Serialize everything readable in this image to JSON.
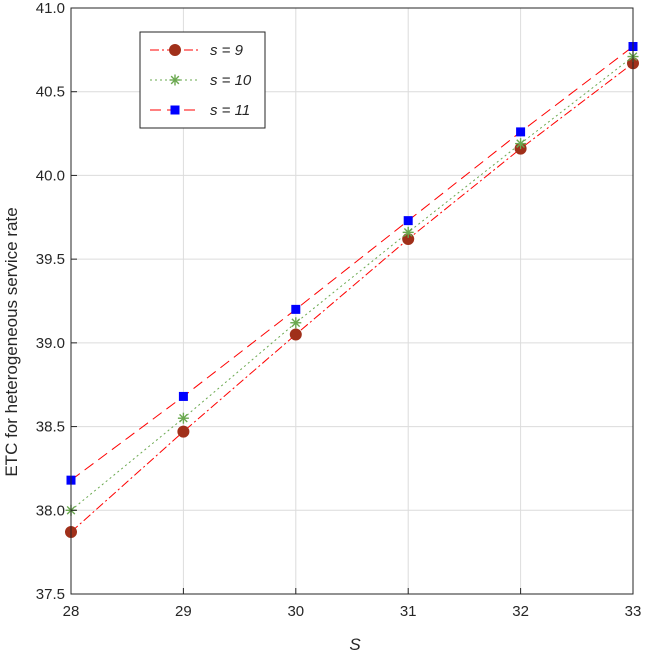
{
  "chart_data": {
    "type": "line",
    "xlabel": "S",
    "ylabel": "ETC for heterogeneous service rate",
    "x": [
      28,
      29,
      30,
      31,
      32,
      33
    ],
    "xlim": [
      28,
      33
    ],
    "ylim": [
      37.5,
      41.0
    ],
    "xticks": [
      "28",
      "29",
      "30",
      "31",
      "32",
      "33"
    ],
    "yticks": [
      "37.5",
      "38.0",
      "38.5",
      "39.0",
      "39.5",
      "40.0",
      "40.5",
      "41.0"
    ],
    "grid": true,
    "legend_position": "top-left",
    "series": [
      {
        "name": "s = 9",
        "values": [
          37.87,
          38.47,
          39.05,
          39.62,
          40.16,
          40.67
        ],
        "color": "#a0301a",
        "marker": "circle",
        "linestyle": "dash-dot"
      },
      {
        "name": "s = 10",
        "values": [
          38.0,
          38.55,
          39.12,
          39.66,
          40.19,
          40.71
        ],
        "color": "#6aa84f",
        "marker": "asterisk",
        "linestyle": "dotted"
      },
      {
        "name": "s = 11",
        "values": [
          38.18,
          38.68,
          39.2,
          39.73,
          40.26,
          40.77
        ],
        "color": "#0000ff",
        "marker": "square",
        "linestyle": "dashed"
      }
    ],
    "line_color": "#ff0000"
  }
}
